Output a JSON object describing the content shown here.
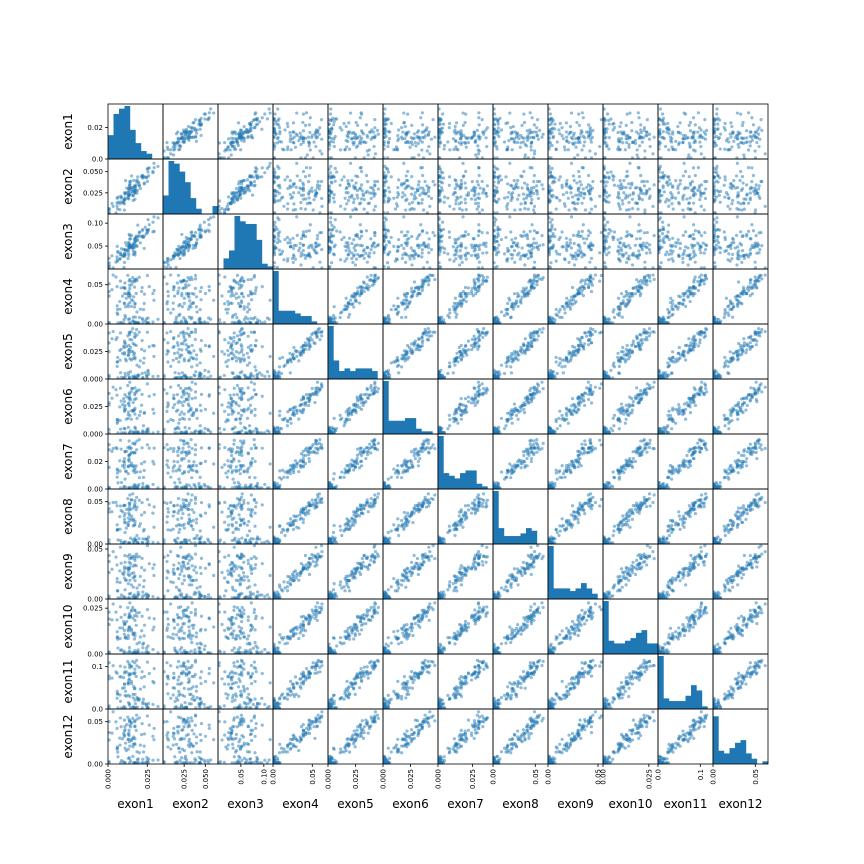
{
  "chart_data": {
    "type": "scatter",
    "subtype": "scatter-matrix",
    "variables": [
      "exon1",
      "exon2",
      "exon3",
      "exon4",
      "exon5",
      "exon6",
      "exon7",
      "exon8",
      "exon9",
      "exon10",
      "exon11",
      "exon12"
    ],
    "diagonal": "histogram",
    "ranges": [
      [
        0,
        0.035
      ],
      [
        0,
        0.065
      ],
      [
        0,
        0.12
      ],
      [
        0,
        0.07
      ],
      [
        0,
        0.05
      ],
      [
        0,
        0.05
      ],
      [
        0,
        0.04
      ],
      [
        0,
        0.065
      ],
      [
        0,
        0.055
      ],
      [
        0,
        0.03
      ],
      [
        0,
        0.13
      ],
      [
        0,
        0.065
      ]
    ],
    "yticks": [
      {
        "values": [
          0.0,
          0.02
        ],
        "labels": [
          "0.0",
          "0.02"
        ]
      },
      {
        "values": [
          0.025,
          0.05
        ],
        "labels": [
          "0.025",
          "0.050"
        ]
      },
      {
        "values": [
          0.05,
          0.1
        ],
        "labels": [
          "0.05",
          "0.10"
        ]
      },
      {
        "values": [
          0.0,
          0.05
        ],
        "labels": [
          "0.00",
          "0.05"
        ]
      },
      {
        "values": [
          0.0,
          0.025
        ],
        "labels": [
          "0.000",
          "0.025"
        ]
      },
      {
        "values": [
          0.0,
          0.025
        ],
        "labels": [
          "0.000",
          "0.025"
        ]
      },
      {
        "values": [
          0.0,
          0.02
        ],
        "labels": [
          "0.00",
          "0.02"
        ]
      },
      {
        "values": [
          0.0,
          0.05
        ],
        "labels": [
          "0.00",
          "0.05"
        ]
      },
      {
        "values": [
          0.0,
          0.05
        ],
        "labels": [
          "0.00",
          "0.05"
        ]
      },
      {
        "values": [
          0.0,
          0.025
        ],
        "labels": [
          "0.00",
          "0.025"
        ]
      },
      {
        "values": [
          0.0,
          0.1
        ],
        "labels": [
          "0.0",
          "0.1"
        ]
      },
      {
        "values": [
          0.0,
          0.05
        ],
        "labels": [
          "0.00",
          "0.05"
        ]
      }
    ],
    "xticks": [
      {
        "values": [
          0.0,
          0.025
        ],
        "labels": [
          "0.000",
          "0.025"
        ]
      },
      {
        "values": [
          0.025,
          0.05
        ],
        "labels": [
          "0.025",
          "0.050"
        ]
      },
      {
        "values": [
          0.05,
          0.1
        ],
        "labels": [
          "0.05",
          "0.10"
        ]
      },
      {
        "values": [
          0.0,
          0.05
        ],
        "labels": [
          "0.00",
          "0.05"
        ]
      },
      {
        "values": [
          0.0,
          0.025
        ],
        "labels": [
          "0.000",
          "0.025"
        ]
      },
      {
        "values": [
          0.0,
          0.025
        ],
        "labels": [
          "0.000",
          "0.025"
        ]
      },
      {
        "values": [
          0.0,
          0.025
        ],
        "labels": [
          "0.000",
          "0.025"
        ]
      },
      {
        "values": [
          0.0,
          0.05
        ],
        "labels": [
          "0.00",
          "0.05"
        ]
      },
      {
        "values": [
          0.0,
          0.05
        ],
        "labels": [
          "0.00",
          "0.05"
        ]
      },
      {
        "values": [
          0.0,
          0.025
        ],
        "labels": [
          "0.00",
          "0.025"
        ]
      },
      {
        "values": [
          0.0,
          0.1
        ],
        "labels": [
          "0.0",
          "0.1"
        ]
      },
      {
        "values": [
          0.0,
          0.05
        ],
        "labels": [
          "0.00",
          "0.05"
        ]
      }
    ],
    "histograms": [
      [
        0.45,
        0.85,
        0.95,
        1.0,
        0.55,
        0.3,
        0.15,
        0.1,
        0.0,
        0.0
      ],
      [
        0.35,
        1.0,
        0.95,
        0.8,
        0.6,
        0.3,
        0.1,
        0.0,
        0.0,
        0.15
      ],
      [
        0.0,
        0.2,
        0.35,
        1.0,
        0.9,
        0.85,
        0.85,
        0.55,
        0.1,
        0.05
      ],
      [
        1.0,
        0.25,
        0.25,
        0.25,
        0.2,
        0.15,
        0.15,
        0.05,
        0.0,
        0.0
      ],
      [
        1.0,
        0.35,
        0.15,
        0.2,
        0.15,
        0.2,
        0.2,
        0.2,
        0.15,
        0.0
      ],
      [
        1.0,
        0.25,
        0.25,
        0.25,
        0.3,
        0.3,
        0.1,
        0.05,
        0.05,
        0.0
      ],
      [
        1.0,
        0.3,
        0.25,
        0.2,
        0.3,
        0.35,
        0.35,
        0.1,
        0.05,
        0.0
      ],
      [
        1.0,
        0.3,
        0.15,
        0.15,
        0.15,
        0.2,
        0.3,
        0.25,
        0.0,
        0.0
      ],
      [
        1.0,
        0.2,
        0.2,
        0.2,
        0.15,
        0.2,
        0.3,
        0.2,
        0.1,
        0.0
      ],
      [
        1.0,
        0.25,
        0.2,
        0.2,
        0.25,
        0.3,
        0.4,
        0.45,
        0.2,
        0.2
      ],
      [
        1.0,
        0.2,
        0.15,
        0.15,
        0.15,
        0.25,
        0.45,
        0.35,
        0.05,
        0.0
      ],
      [
        0.9,
        0.25,
        0.2,
        0.3,
        0.4,
        0.45,
        0.2,
        0.1,
        0.0,
        0.05
      ]
    ],
    "marker_color": "#1f77b4",
    "hist_color": "#1f77b4",
    "marker_alpha": 0.5,
    "title": "",
    "grid": false,
    "legend": "none"
  }
}
